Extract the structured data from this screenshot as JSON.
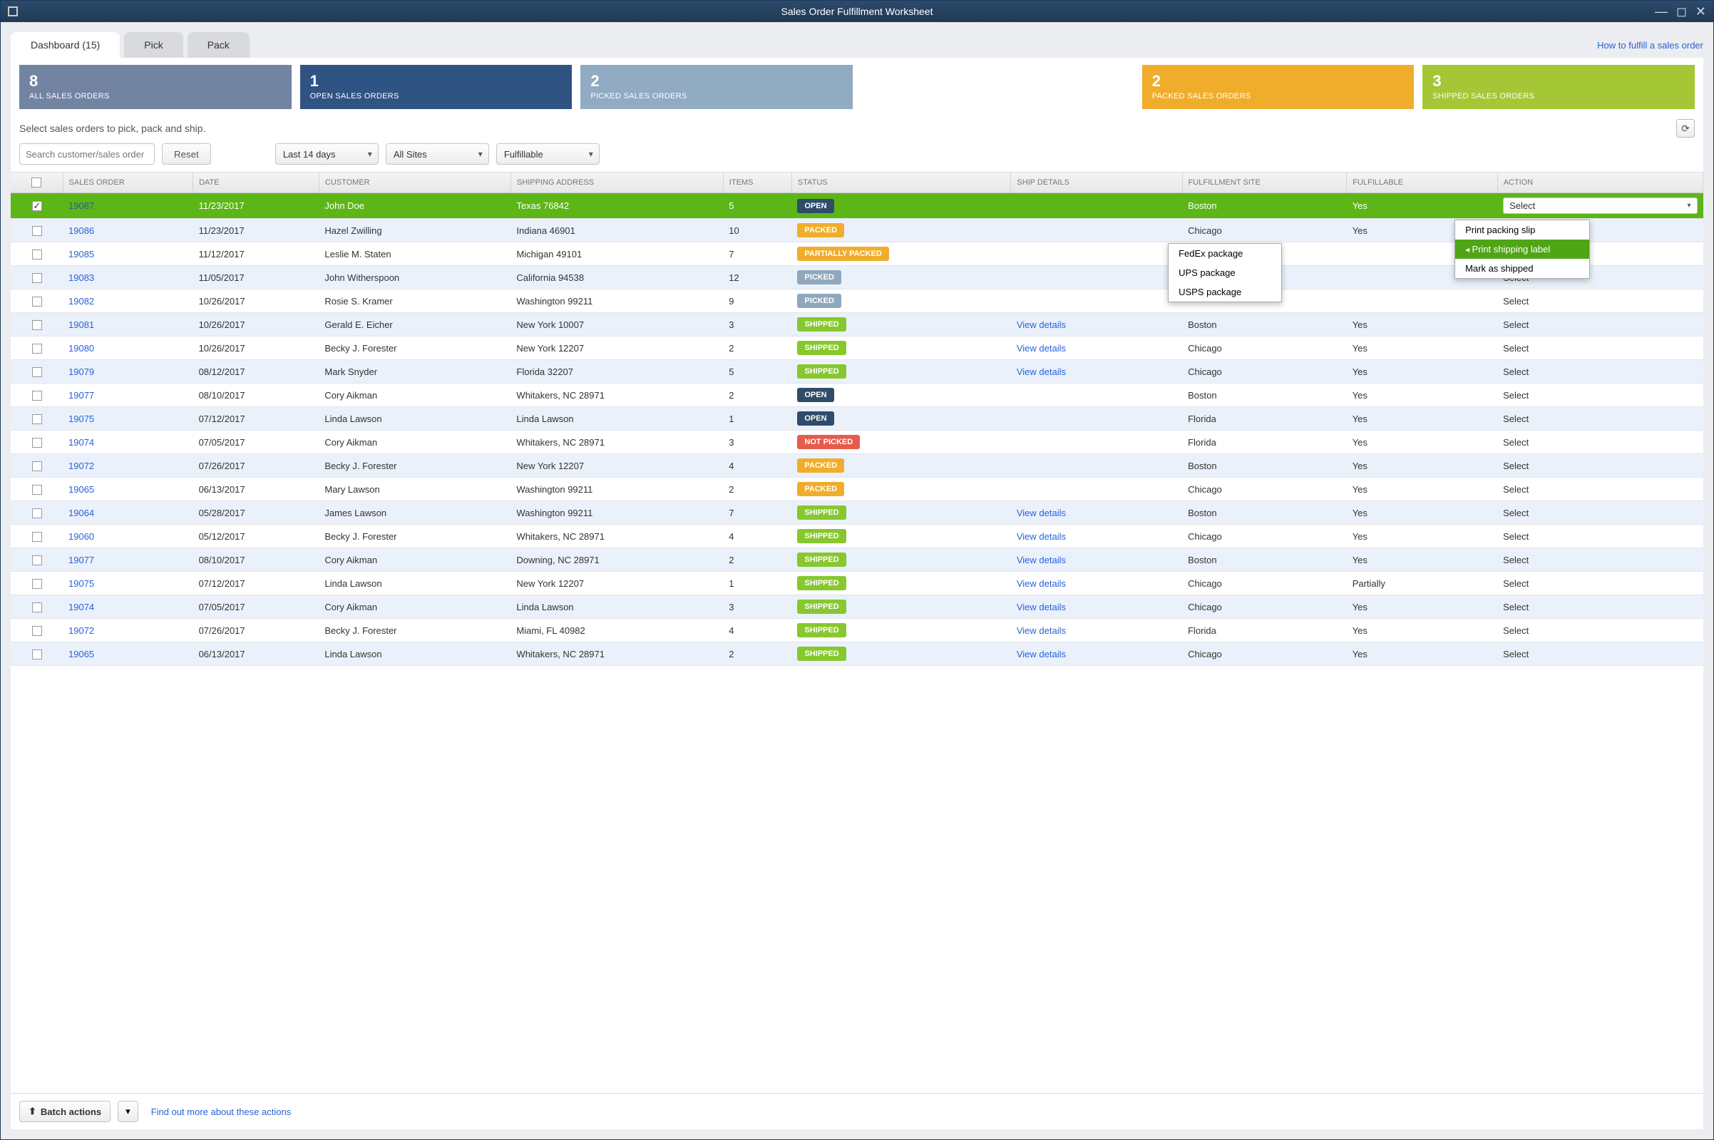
{
  "window": {
    "title": "Sales Order Fulfillment Worksheet"
  },
  "tabs": [
    {
      "label": "Dashboard (15)",
      "active": true
    },
    {
      "label": "Pick",
      "active": false
    },
    {
      "label": "Pack",
      "active": false
    }
  ],
  "helpLink": "How to fulfill a sales order",
  "statusCards": [
    {
      "count": "8",
      "label": "ALL SALES ORDERS",
      "color": "#7384a3"
    },
    {
      "count": "1",
      "label": "OPEN SALES ORDERS",
      "color": "#2f5383"
    },
    {
      "count": "2",
      "label": "PICKED SALES ORDERS",
      "color": "#90abc2"
    },
    {
      "blank": true
    },
    {
      "count": "2",
      "label": "PACKED SALES ORDERS",
      "color": "#f0ad2b"
    },
    {
      "count": "3",
      "label": "SHIPPED SALES ORDERS",
      "color": "#a5c736"
    }
  ],
  "instructions": "Select sales orders to pick, pack and ship.",
  "search": {
    "placeholder": "Search customer/sales order"
  },
  "resetLabel": "Reset",
  "filters": {
    "dateRange": "Last 14 days",
    "site": "All Sites",
    "fulfillable": "Fulfillable"
  },
  "columns": [
    "",
    "SALES ORDER",
    "DATE",
    "CUSTOMER",
    "SHIPPING ADDRESS",
    "ITEMS",
    "STATUS",
    "SHIP DETAILS",
    "FULFILLMENT SITE",
    "FULFILLABLE",
    "ACTION"
  ],
  "statusColors": {
    "OPEN": "#2f4c6b",
    "PACKED": "#f0ad2b",
    "PARTIALLY PACKED": "#f0ad2b",
    "PICKED": "#8fa8bd",
    "SHIPPED": "#86c82d",
    "NOT PICKED": "#e75b4d"
  },
  "rows": [
    {
      "checked": true,
      "selected": true,
      "order": "19087",
      "date": "11/23/2017",
      "customer": "John Doe",
      "address": "Texas 76842",
      "items": "5",
      "status": "OPEN",
      "ship": "",
      "site": "Boston",
      "fulfillable": "Yes",
      "action": "Select",
      "actionOpen": true
    },
    {
      "order": "19086",
      "date": "11/23/2017",
      "customer": "Hazel Zwilling",
      "address": "Indiana 46901",
      "items": "10",
      "status": "PACKED",
      "ship": "",
      "site": "Chicago",
      "fulfillable": "Yes",
      "action": "Select"
    },
    {
      "order": "19085",
      "date": "11/12/2017",
      "customer": "Leslie M. Staten",
      "address": "Michigan 49101",
      "items": "7",
      "status": "PARTIALLY PACKED",
      "ship": "",
      "site": "",
      "fulfillable": "",
      "action": "Select"
    },
    {
      "order": "19083",
      "date": "11/05/2017",
      "customer": "John Witherspoon",
      "address": "California 94538",
      "items": "12",
      "status": "PICKED",
      "ship": "",
      "site": "",
      "fulfillable": "",
      "action": "Select"
    },
    {
      "order": "19082",
      "date": "10/26/2017",
      "customer": "Rosie S. Kramer",
      "address": "Washington 99211",
      "items": "9",
      "status": "PICKED",
      "ship": "",
      "site": "",
      "fulfillable": "",
      "action": "Select"
    },
    {
      "order": "19081",
      "date": "10/26/2017",
      "customer": "Gerald E. Eicher",
      "address": "New York 10007",
      "items": "3",
      "status": "SHIPPED",
      "ship": "View details",
      "site": "Boston",
      "fulfillable": "Yes",
      "action": "Select"
    },
    {
      "order": "19080",
      "date": "10/26/2017",
      "customer": "Becky J. Forester",
      "address": "New York 12207",
      "items": "2",
      "status": "SHIPPED",
      "ship": "View details",
      "site": "Chicago",
      "fulfillable": "Yes",
      "action": "Select"
    },
    {
      "order": "19079",
      "date": "08/12/2017",
      "customer": "Mark Snyder",
      "address": "Florida 32207",
      "items": "5",
      "status": "SHIPPED",
      "ship": "View details",
      "site": "Chicago",
      "fulfillable": "Yes",
      "action": "Select"
    },
    {
      "order": "19077",
      "date": "08/10/2017",
      "customer": "Cory Aikman",
      "address": "Whitakers, NC 28971",
      "items": "2",
      "status": "OPEN",
      "ship": "",
      "site": "Boston",
      "fulfillable": "Yes",
      "action": "Select"
    },
    {
      "order": "19075",
      "date": "07/12/2017",
      "customer": "Linda Lawson",
      "address": "Linda Lawson",
      "items": "1",
      "status": "OPEN",
      "ship": "",
      "site": "Florida",
      "fulfillable": "Yes",
      "action": "Select"
    },
    {
      "order": "19074",
      "date": "07/05/2017",
      "customer": "Cory Aikman",
      "address": "Whitakers, NC 28971",
      "items": "3",
      "status": "NOT PICKED",
      "ship": "",
      "site": "Florida",
      "fulfillable": "Yes",
      "action": "Select"
    },
    {
      "order": "19072",
      "date": "07/26/2017",
      "customer": "Becky J. Forester",
      "address": "New York 12207",
      "items": "4",
      "status": "PACKED",
      "ship": "",
      "site": "Boston",
      "fulfillable": "Yes",
      "action": "Select"
    },
    {
      "order": "19065",
      "date": "06/13/2017",
      "customer": "Mary Lawson",
      "address": "Washington 99211",
      "items": "2",
      "status": "PACKED",
      "ship": "",
      "site": "Chicago",
      "fulfillable": "Yes",
      "action": "Select"
    },
    {
      "order": "19064",
      "date": "05/28/2017",
      "customer": "James Lawson",
      "address": "Washington 99211",
      "items": "7",
      "status": "SHIPPED",
      "ship": "View details",
      "site": "Boston",
      "fulfillable": "Yes",
      "action": "Select"
    },
    {
      "order": "19060",
      "date": "05/12/2017",
      "customer": "Becky J. Forester",
      "address": "Whitakers, NC 28971",
      "items": "4",
      "status": "SHIPPED",
      "ship": "View details",
      "site": "Chicago",
      "fulfillable": "Yes",
      "action": "Select"
    },
    {
      "order": "19077",
      "date": "08/10/2017",
      "customer": "Cory Aikman",
      "address": "Downing, NC 28971",
      "items": "2",
      "status": "SHIPPED",
      "ship": "View details",
      "site": "Boston",
      "fulfillable": "Yes",
      "action": "Select"
    },
    {
      "order": "19075",
      "date": "07/12/2017",
      "customer": "Linda Lawson",
      "address": "New York 12207",
      "items": "1",
      "status": "SHIPPED",
      "ship": "View details",
      "site": "Chicago",
      "fulfillable": "Partially",
      "action": "Select"
    },
    {
      "order": "19074",
      "date": "07/05/2017",
      "customer": "Cory Aikman",
      "address": "Linda Lawson",
      "items": "3",
      "status": "SHIPPED",
      "ship": "View details",
      "site": "Chicago",
      "fulfillable": "Yes",
      "action": "Select"
    },
    {
      "order": "19072",
      "date": "07/26/2017",
      "customer": "Becky J. Forester",
      "address": "Miami, FL 40982",
      "items": "4",
      "status": "SHIPPED",
      "ship": "View details",
      "site": "Florida",
      "fulfillable": "Yes",
      "action": "Select"
    },
    {
      "order": "19065",
      "date": "06/13/2017",
      "customer": "Linda Lawson",
      "address": "Whitakers, NC 28971",
      "items": "2",
      "status": "SHIPPED",
      "ship": "View details",
      "site": "Chicago",
      "fulfillable": "Yes",
      "action": "Select"
    }
  ],
  "shipPopup": {
    "items": [
      "FedEx package",
      "UPS package",
      "USPS package"
    ]
  },
  "actionPopup": {
    "items": [
      {
        "label": "Print packing slip",
        "hi": false
      },
      {
        "label": "Print shipping label",
        "hi": true
      },
      {
        "label": "Mark as shipped",
        "hi": false
      }
    ]
  },
  "footer": {
    "batchLabel": "Batch actions",
    "linkLabel": "Find out more about these actions"
  }
}
